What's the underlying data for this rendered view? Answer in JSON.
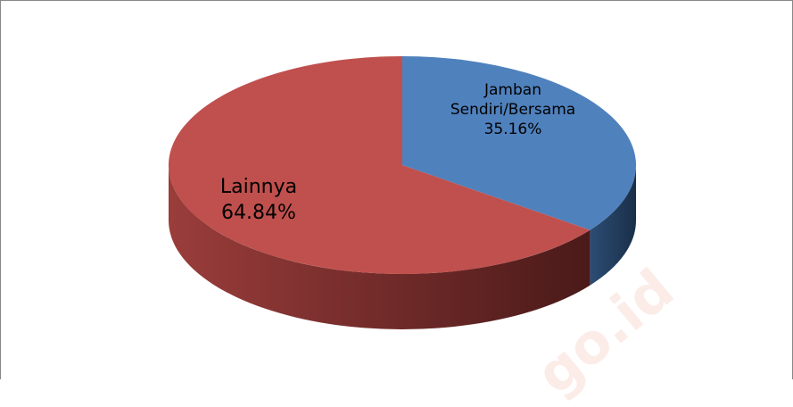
{
  "chart_data": {
    "type": "pie3d",
    "categories": [
      "Jamban Sendiri/Bersama",
      "Lainnya"
    ],
    "values": [
      35.16,
      64.84
    ],
    "value_labels": [
      "35.16%",
      "64.84%"
    ],
    "colors": [
      "#4f81bd",
      "#c0504d"
    ],
    "side_colors": [
      [
        "#2c4d75",
        "#1a2f48"
      ],
      [
        "#9a3d3b",
        "#4a1a19"
      ]
    ],
    "watermark": "go.id"
  }
}
